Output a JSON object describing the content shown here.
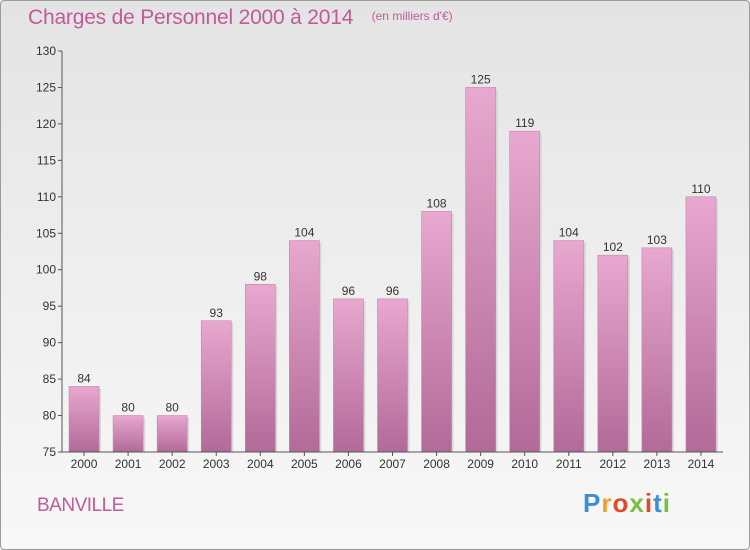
{
  "title": "Charges de Personnel 2000 à 2014",
  "unit_note": "(en milliers d'€)",
  "place": "BANVILLE",
  "logo": {
    "text": "Proxiti",
    "colors": [
      "#3b8fd6",
      "#f0a023",
      "#e04a2a",
      "#7bbf3a",
      "#e04a2a",
      "#3b8fd6",
      "#7bbf3a"
    ]
  },
  "colors": {
    "title": "#c05a98",
    "bar_top": "#e8a8cf",
    "bar_bottom": "#b26a98"
  },
  "chart_data": {
    "type": "bar",
    "title": "Charges de Personnel 2000 à 2014",
    "categories": [
      "2000",
      "2001",
      "2002",
      "2003",
      "2004",
      "2005",
      "2006",
      "2007",
      "2008",
      "2009",
      "2010",
      "2011",
      "2012",
      "2013",
      "2014"
    ],
    "values": [
      84,
      80,
      80,
      93,
      98,
      104,
      96,
      96,
      108,
      125,
      119,
      104,
      102,
      103,
      110
    ],
    "ylim": [
      75,
      130
    ],
    "yticks": [
      75,
      80,
      85,
      90,
      95,
      100,
      105,
      110,
      115,
      120,
      125,
      130
    ],
    "grid": false,
    "xlabel": "",
    "ylabel": ""
  }
}
